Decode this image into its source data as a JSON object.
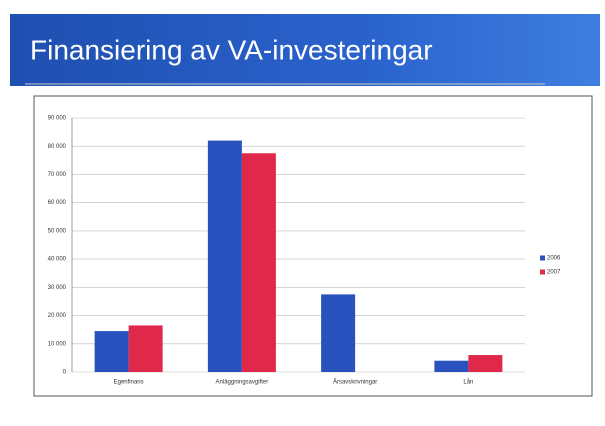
{
  "chart_data": {
    "type": "bar",
    "title": "Finansiering av VA-investeringar",
    "categories": [
      "Egenfinans",
      "Anläggningsavgifter",
      "Årsavskrivningar",
      "Lån"
    ],
    "series": [
      {
        "name": "2006",
        "color": "#2a52be",
        "values": [
          14500,
          82000,
          27500,
          4000
        ]
      },
      {
        "name": "2007",
        "color": "#e0284a",
        "values": [
          16500,
          77500,
          null,
          6000
        ]
      }
    ],
    "ylim": [
      0,
      90000
    ],
    "yticks": [
      0,
      {
        "value": 10000,
        "label": "10 000"
      },
      {
        "value": 20000,
        "label": "20 000"
      },
      {
        "value": 30000,
        "label": "30 000"
      },
      {
        "value": 40000,
        "label": "40 000"
      },
      {
        "value": 50000,
        "label": "50 000"
      },
      {
        "value": 60000,
        "label": "60 000"
      },
      {
        "value": 70000,
        "label": "70 000"
      },
      {
        "value": 80000,
        "label": "80 000"
      },
      {
        "value": 90000,
        "label": "90 000"
      }
    ],
    "grid": true,
    "legend": "right"
  }
}
